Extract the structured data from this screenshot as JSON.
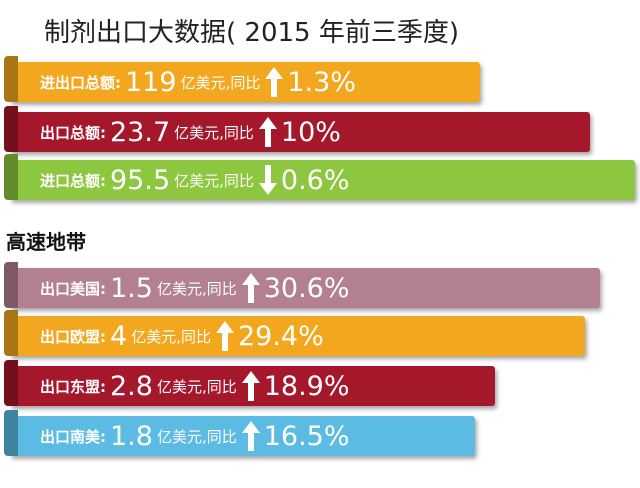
{
  "header": {
    "title": "制剂出口大数据( 2015 年前三季度)"
  },
  "groups": [
    {
      "rows": [
        {
          "label": "进出口总额:",
          "value": "119",
          "unit": "亿美元,同比",
          "direction": "up",
          "change": "1.3%",
          "color": "#f2a71e"
        },
        {
          "label": "出口总额:",
          "value": "23.7",
          "unit": "亿美元,同比",
          "direction": "up",
          "change": "10%",
          "color": "#a5172b"
        },
        {
          "label": "进口总额:",
          "value": "95.5",
          "unit": "亿美元,同比",
          "direction": "down",
          "change": "0.6%",
          "color": "#8dc63f"
        }
      ]
    },
    {
      "title": "高速地带",
      "rows": [
        {
          "label": "出口美国:",
          "value": "1.5",
          "unit": "亿美元,同比",
          "direction": "up",
          "change": "30.6%",
          "color": "#b3808f"
        },
        {
          "label": "出口欧盟:",
          "value": "4",
          "unit": "亿美元,同比",
          "direction": "up",
          "change": "29.4%",
          "color": "#f2a71e"
        },
        {
          "label": "出口东盟:",
          "value": "2.8",
          "unit": "亿美元,同比",
          "direction": "up",
          "change": "18.9%",
          "color": "#a5172b"
        },
        {
          "label": "出口南美:",
          "value": "1.8",
          "unit": "亿美元,同比",
          "direction": "up",
          "change": "16.5%",
          "color": "#5cbbe3"
        }
      ]
    }
  ]
}
